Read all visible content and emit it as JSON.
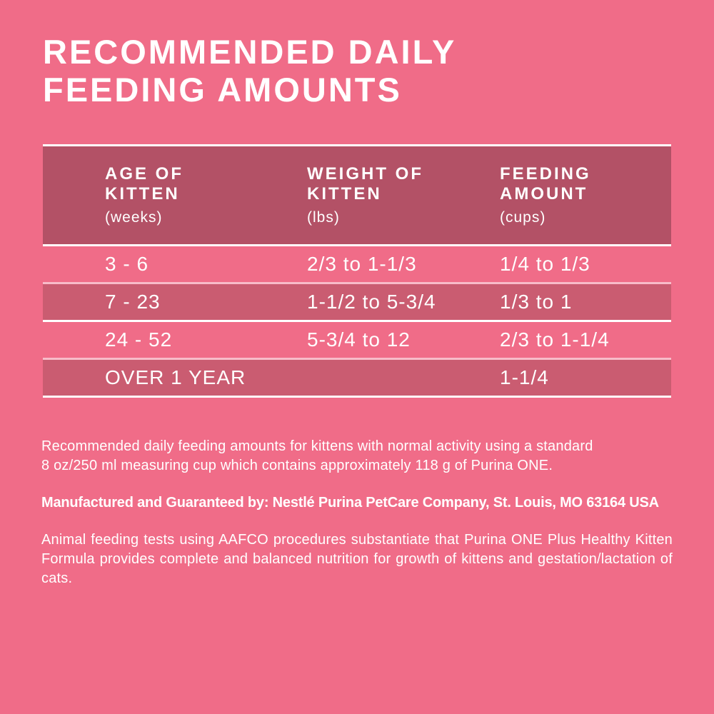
{
  "title": {
    "text": "RECOMMENDED DAILY\nFEEDING AMOUNTS"
  },
  "table": {
    "columns": [
      {
        "label": "AGE OF\nKITTEN",
        "unit": "(weeks)"
      },
      {
        "label": "WEIGHT OF\nKITTEN",
        "unit": "(lbs)"
      },
      {
        "label": "FEEDING\nAMOUNT",
        "unit": "(cups)"
      }
    ],
    "rows": [
      {
        "age": "3 - 6",
        "weight": "2/3 to 1-1/3",
        "amount": "1/4 to 1/3"
      },
      {
        "age": "7 - 23",
        "weight": "1-1/2 to 5-3/4",
        "amount": "1/3 to 1"
      },
      {
        "age": "24 - 52",
        "weight": "5-3/4 to 12",
        "amount": "2/3 to 1-1/4"
      },
      {
        "age": "OVER 1 YEAR",
        "weight": "",
        "amount": "1-1/4"
      }
    ]
  },
  "notes": {
    "usage": "Recommended daily feeding amounts for kittens with normal activity using a standard\n8 oz/250 ml measuring cup which contains approximately 118 g of Purina ONE.",
    "manufacturer": "Manufactured and Guaranteed by: Nestlé Purina PetCare Company, St. Louis, MO 63164 USA",
    "aafco": "Animal feeding tests using AAFCO procedures substantiate that Purina ONE Plus Healthy Kitten Formula provides complete and balanced nutrition for growth of kittens and gestation/lactation of cats."
  },
  "colors": {
    "background": "#F06C88",
    "header_band": "#B35166",
    "row_stripe": "#CA5C71",
    "separator": "#FFFFFF",
    "text": "#FFFFFF"
  }
}
